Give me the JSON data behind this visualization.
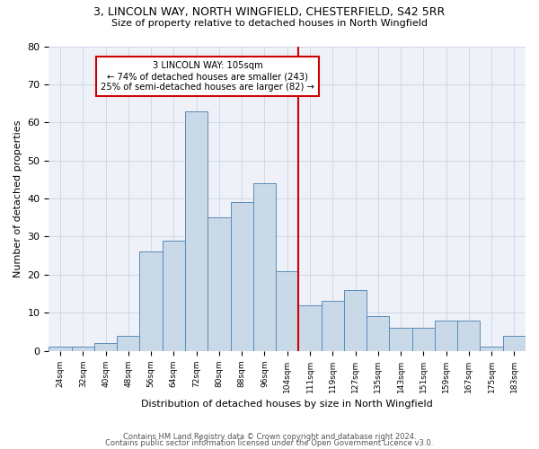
{
  "title1": "3, LINCOLN WAY, NORTH WINGFIELD, CHESTERFIELD, S42 5RR",
  "title2": "Size of property relative to detached houses in North Wingfield",
  "xlabel": "Distribution of detached houses by size in North Wingfield",
  "ylabel": "Number of detached properties",
  "categories": [
    "24sqm",
    "32sqm",
    "40sqm",
    "48sqm",
    "56sqm",
    "64sqm",
    "72sqm",
    "80sqm",
    "88sqm",
    "96sqm",
    "104sqm",
    "111sqm",
    "119sqm",
    "127sqm",
    "135sqm",
    "143sqm",
    "151sqm",
    "159sqm",
    "167sqm",
    "175sqm",
    "183sqm"
  ],
  "bar_values": [
    1,
    1,
    2,
    4,
    26,
    29,
    63,
    35,
    39,
    44,
    21,
    12,
    13,
    16,
    9,
    6,
    6,
    8,
    8,
    1,
    4
  ],
  "bar_color": "#c9d9e8",
  "bar_edge_color": "#5b8db8",
  "grid_color": "#d0d8e8",
  "background_color": "#eef2f8",
  "annotation_text": "3 LINCOLN WAY: 105sqm\n← 74% of detached houses are smaller (243)\n25% of semi-detached houses are larger (82) →",
  "vline_color": "#cc0000",
  "box_color": "#cc0000",
  "ylim": [
    0,
    80
  ],
  "yticks": [
    0,
    10,
    20,
    30,
    40,
    50,
    60,
    70,
    80
  ],
  "title1_fontsize": 9,
  "title2_fontsize": 8,
  "footer1": "Contains HM Land Registry data © Crown copyright and database right 2024.",
  "footer2": "Contains public sector information licensed under the Open Government Licence v3.0."
}
